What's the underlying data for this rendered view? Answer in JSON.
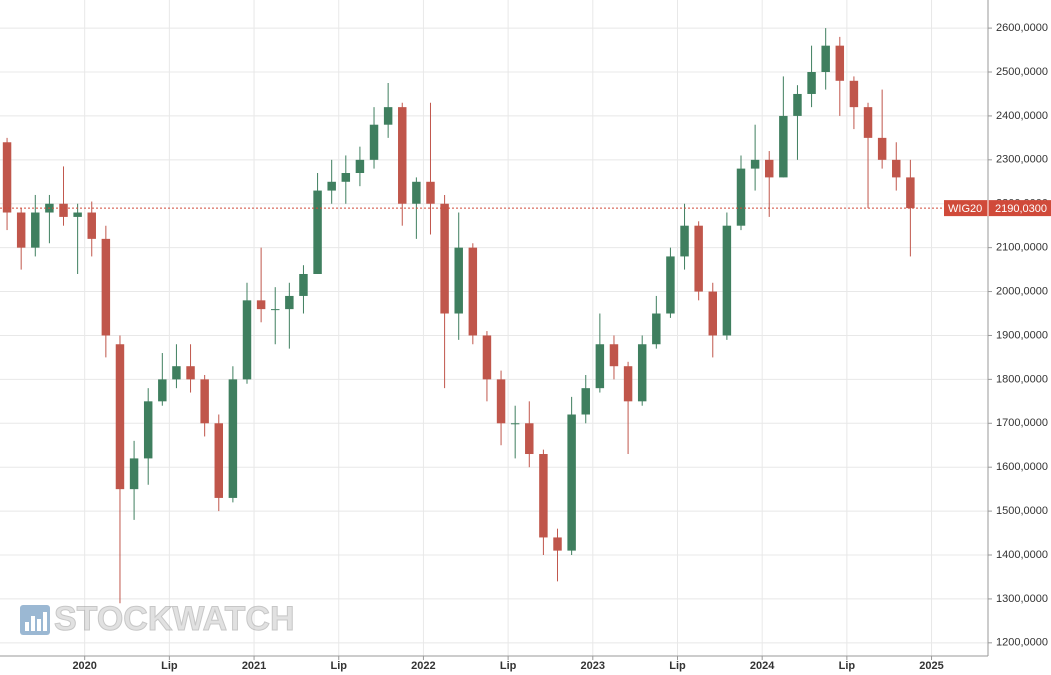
{
  "chart_data": {
    "type": "candlestick",
    "watermark": "STOCKWATCH",
    "x": [
      "2019-07",
      "2019-08",
      "2019-09",
      "2019-10",
      "2019-11",
      "2019-12",
      "2020-01",
      "2020-02",
      "2020-03",
      "2020-04",
      "2020-05",
      "2020-06",
      "2020-07",
      "2020-08",
      "2020-09",
      "2020-10",
      "2020-11",
      "2020-12",
      "2021-01",
      "2021-02",
      "2021-03",
      "2021-04",
      "2021-05",
      "2021-06",
      "2021-07",
      "2021-08",
      "2021-09",
      "2021-10",
      "2021-11",
      "2021-12",
      "2022-01",
      "2022-02",
      "2022-03",
      "2022-04",
      "2022-05",
      "2022-06",
      "2022-07",
      "2022-08",
      "2022-09",
      "2022-10",
      "2022-11",
      "2022-12",
      "2023-01",
      "2023-02",
      "2023-03",
      "2023-04",
      "2023-05",
      "2023-06",
      "2023-07",
      "2023-08",
      "2023-09",
      "2023-10",
      "2023-11",
      "2023-12",
      "2024-01",
      "2024-02",
      "2024-03",
      "2024-04",
      "2024-05",
      "2024-06",
      "2024-07",
      "2024-08",
      "2024-09",
      "2024-10",
      "2024-11"
    ],
    "open": [
      2340,
      2180,
      2100,
      2180,
      2200,
      2170,
      2180,
      2120,
      1880,
      1550,
      1620,
      1750,
      1800,
      1830,
      1800,
      1700,
      1530,
      1800,
      1980,
      1960,
      1960,
      1990,
      2040,
      2230,
      2250,
      2270,
      2300,
      2380,
      2420,
      2200,
      2250,
      2200,
      1950,
      2100,
      1900,
      1800,
      1700,
      1700,
      1630,
      1440,
      1410,
      1720,
      1780,
      1880,
      1830,
      1750,
      1880,
      1950,
      2080,
      2150,
      2000,
      1900,
      2150,
      2280,
      2300,
      2260,
      2400,
      2450,
      2500,
      2560,
      2480,
      2420,
      2350,
      2300,
      2260
    ],
    "high": [
      2350,
      2190,
      2220,
      2220,
      2285,
      2200,
      2205,
      2150,
      1900,
      1660,
      1780,
      1860,
      1880,
      1880,
      1810,
      1720,
      1830,
      2020,
      2100,
      2010,
      2020,
      2060,
      2270,
      2300,
      2310,
      2330,
      2420,
      2475,
      2430,
      2260,
      2430,
      2220,
      2180,
      2110,
      1910,
      1820,
      1740,
      1750,
      1640,
      1460,
      1760,
      1810,
      1950,
      1900,
      1840,
      1900,
      1990,
      2100,
      2200,
      2160,
      2020,
      2180,
      2310,
      2380,
      2320,
      2490,
      2470,
      2560,
      2600,
      2580,
      2490,
      2430,
      2460,
      2340,
      2300
    ],
    "low": [
      2140,
      2050,
      2080,
      2110,
      2150,
      2040,
      2080,
      1850,
      1290,
      1480,
      1560,
      1740,
      1780,
      1770,
      1670,
      1500,
      1520,
      1790,
      1930,
      1880,
      1870,
      1950,
      2040,
      2200,
      2200,
      2240,
      2280,
      2350,
      2150,
      2120,
      2130,
      1780,
      1890,
      1880,
      1750,
      1650,
      1620,
      1600,
      1400,
      1340,
      1400,
      1700,
      1770,
      1800,
      1630,
      1740,
      1870,
      1940,
      2050,
      1980,
      1850,
      1890,
      2140,
      2230,
      2170,
      2260,
      2300,
      2420,
      2460,
      2400,
      2370,
      2190,
      2280,
      2230,
      2080
    ],
    "close": [
      2180,
      2100,
      2180,
      2200,
      2170,
      2180,
      2120,
      1900,
      1550,
      1620,
      1750,
      1800,
      1830,
      1800,
      1700,
      1530,
      1800,
      1980,
      1960,
      1960,
      1990,
      2040,
      2230,
      2250,
      2270,
      2300,
      2380,
      2420,
      2200,
      2250,
      2200,
      1950,
      2100,
      1900,
      1800,
      1700,
      1700,
      1630,
      1440,
      1410,
      1720,
      1780,
      1880,
      1830,
      1750,
      1880,
      1950,
      2080,
      2150,
      2000,
      1900,
      2150,
      2280,
      2300,
      2260,
      2400,
      2450,
      2500,
      2560,
      2480,
      2420,
      2350,
      2300,
      2260,
      2190
    ],
    "up_color": "#3f7f5f",
    "down_color": "#c0564b",
    "last_price": {
      "label": "WIG20",
      "value": 2190.03,
      "value_label": "2190,0300",
      "color": "#d04a3a"
    },
    "xlim": [
      "2019-07",
      "2025-05"
    ],
    "xticks": [
      {
        "value": "2020-01",
        "label": "2020"
      },
      {
        "value": "2020-07",
        "label": "Lip"
      },
      {
        "value": "2021-01",
        "label": "2021"
      },
      {
        "value": "2021-07",
        "label": "Lip"
      },
      {
        "value": "2022-01",
        "label": "2022"
      },
      {
        "value": "2022-07",
        "label": "Lip"
      },
      {
        "value": "2023-01",
        "label": "2023"
      },
      {
        "value": "2023-07",
        "label": "Lip"
      },
      {
        "value": "2024-01",
        "label": "2024"
      },
      {
        "value": "2024-07",
        "label": "Lip"
      },
      {
        "value": "2025-01",
        "label": "2025"
      }
    ],
    "ylim": [
      1170,
      2664
    ],
    "yticks": [
      {
        "value": 1200,
        "label": "1200,0000"
      },
      {
        "value": 1300,
        "label": "1300,0000"
      },
      {
        "value": 1400,
        "label": "1400,0000"
      },
      {
        "value": 1500,
        "label": "1500,0000"
      },
      {
        "value": 1600,
        "label": "1600,0000"
      },
      {
        "value": 1700,
        "label": "1700,0000"
      },
      {
        "value": 1800,
        "label": "1800,0000"
      },
      {
        "value": 1900,
        "label": "1900,0000"
      },
      {
        "value": 2000,
        "label": "2000,0000"
      },
      {
        "value": 2100,
        "label": "2100,0000"
      },
      {
        "value": 2200,
        "label": "2200,0000"
      },
      {
        "value": 2300,
        "label": "2300,0000"
      },
      {
        "value": 2400,
        "label": "2400,0000"
      },
      {
        "value": 2500,
        "label": "2500,0000"
      },
      {
        "value": 2600,
        "label": "2600,0000"
      }
    ],
    "grid": true
  }
}
